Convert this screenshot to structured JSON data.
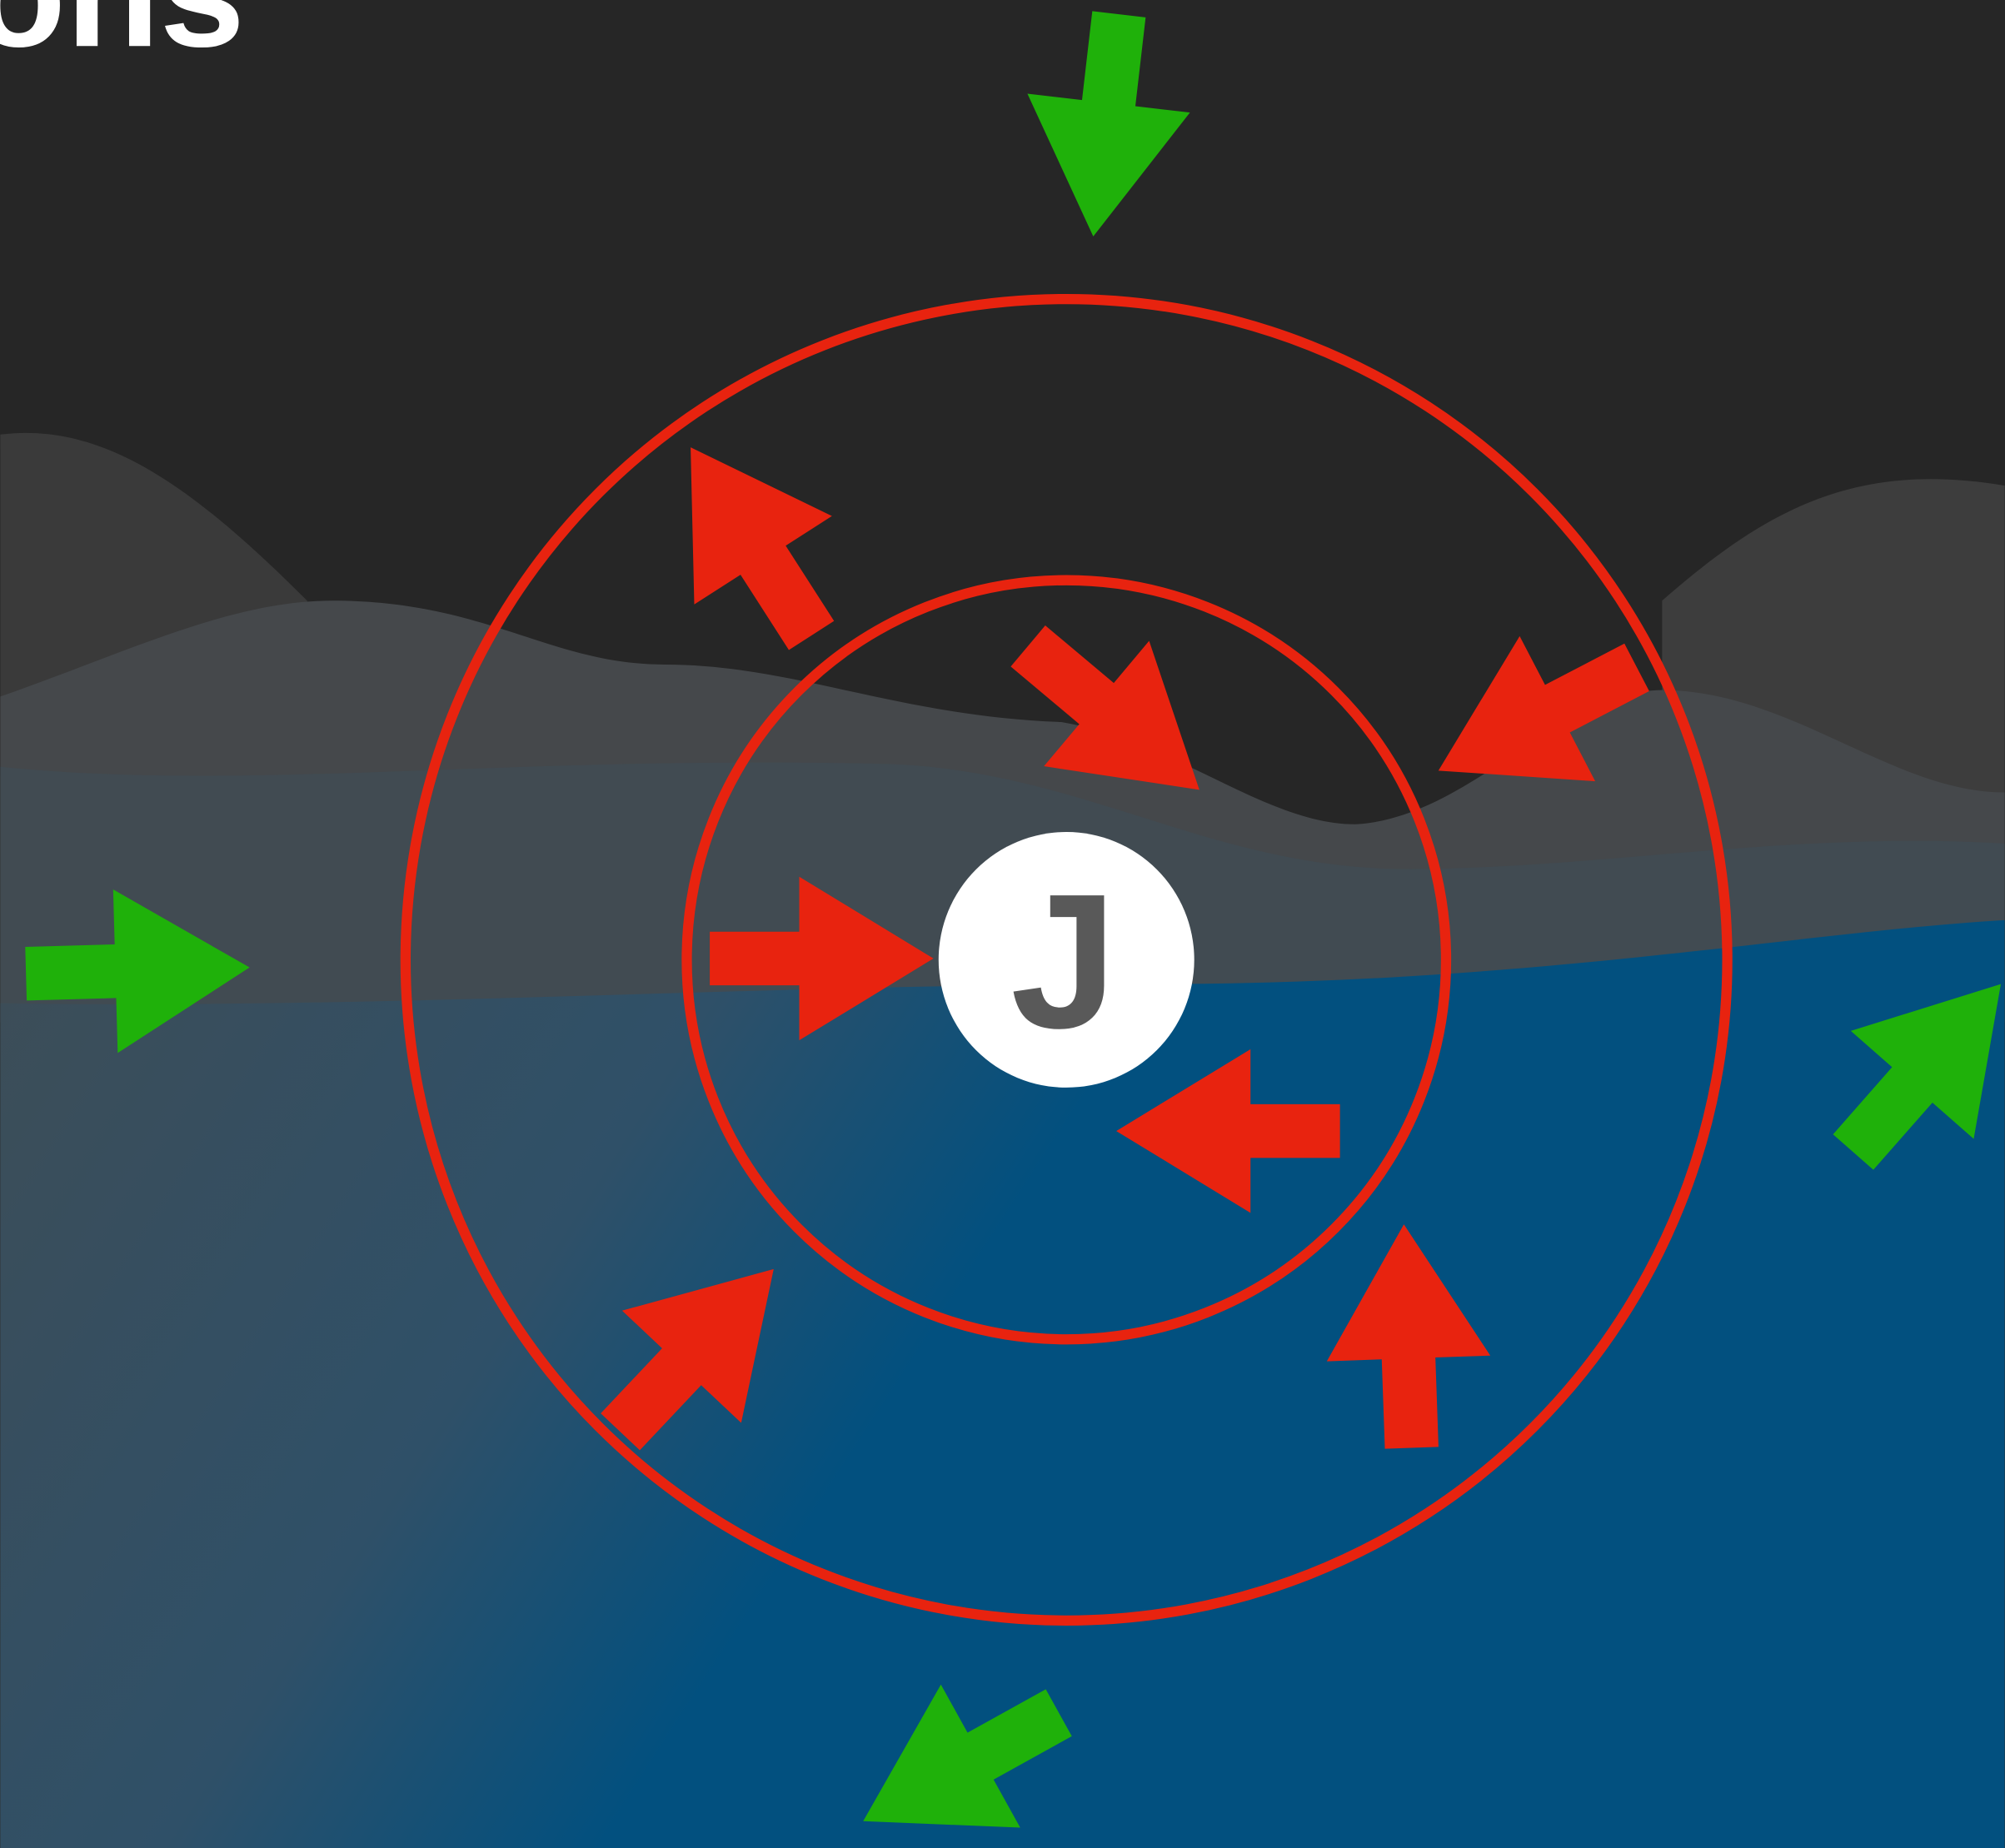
{
  "header": {
    "title": "ons"
  },
  "avatar": {
    "initial": "J"
  }
}
